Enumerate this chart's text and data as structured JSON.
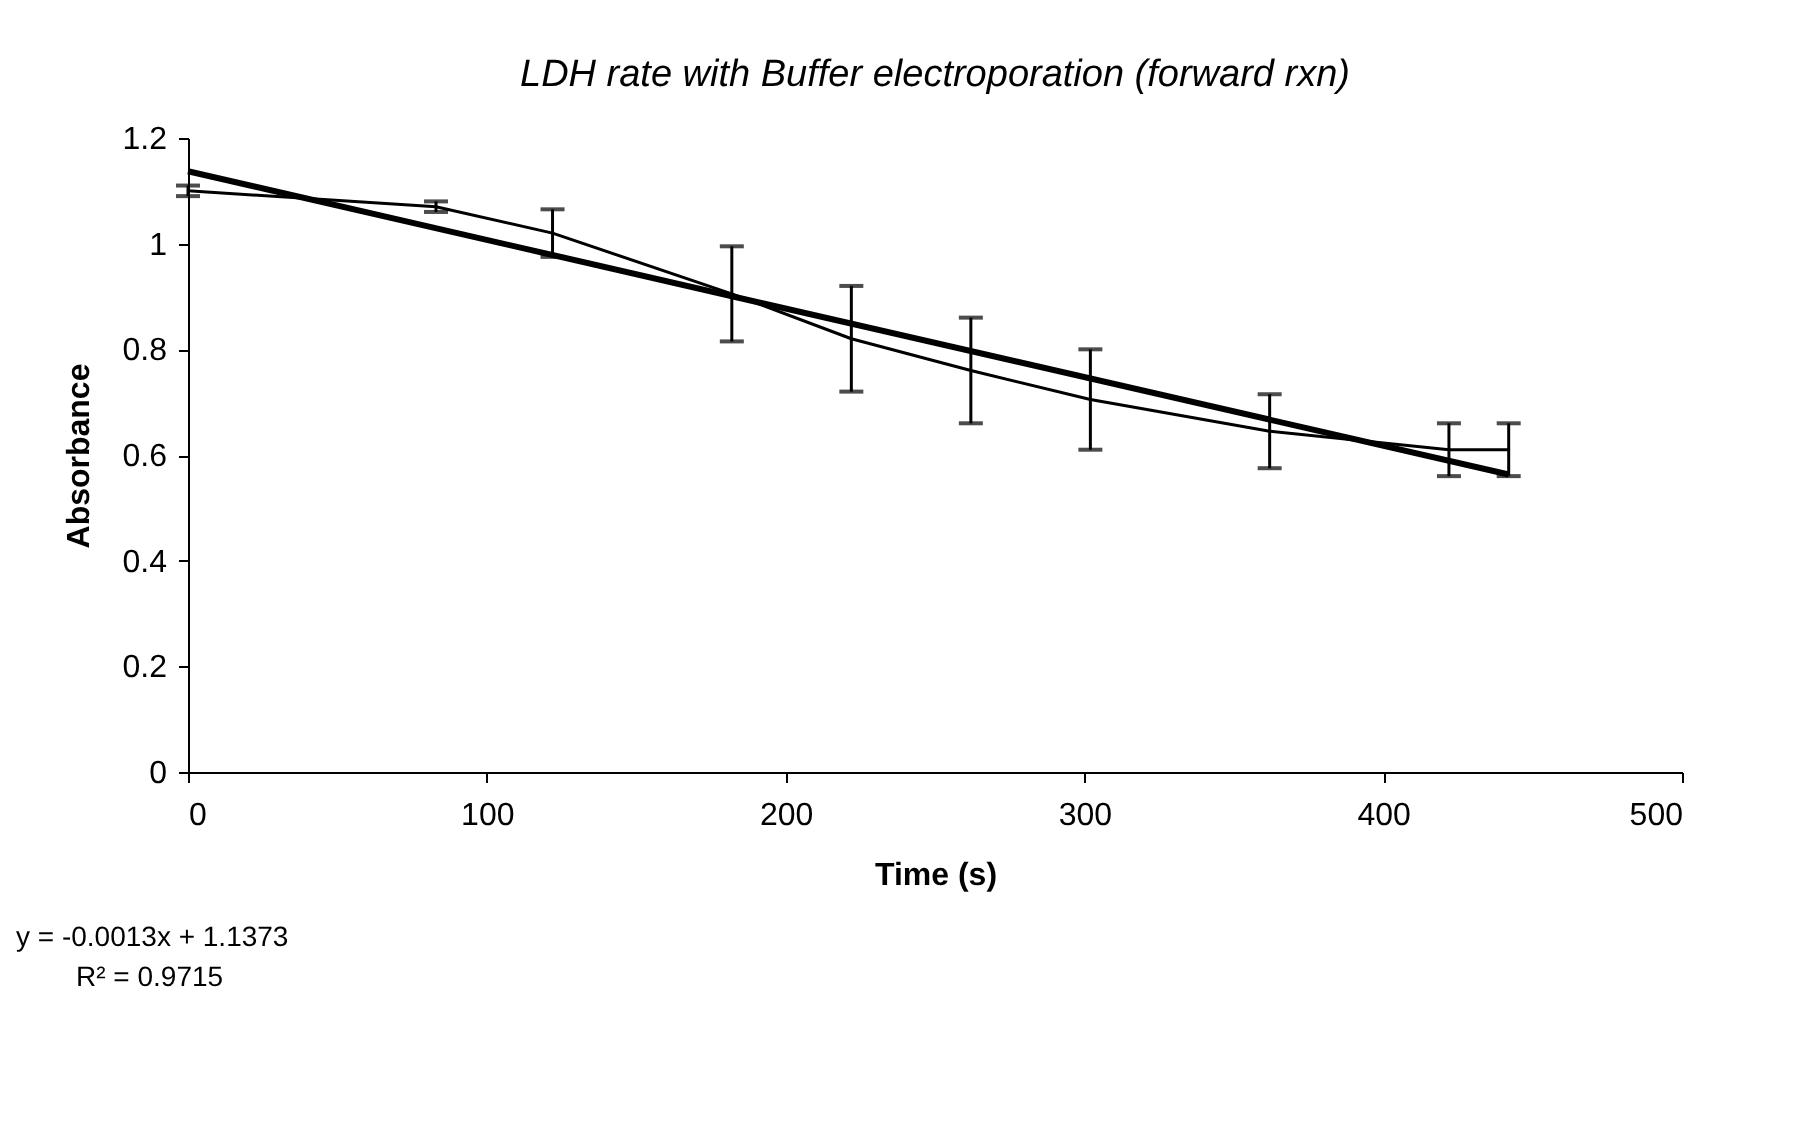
{
  "chart_data": {
    "type": "line",
    "title": "LDH rate with Buffer electroporation (forward rxn)",
    "xlabel": "Time (s)",
    "ylabel": "Absorbance",
    "xlim": [
      0,
      500
    ],
    "xticks": [
      0,
      100,
      200,
      300,
      400,
      500
    ],
    "ylim": [
      0,
      1.2
    ],
    "yticks": [
      0,
      0.2,
      0.4,
      0.6,
      0.8,
      1,
      1.2
    ],
    "grid": false,
    "marker": "none",
    "series": [
      {
        "color": "#000000",
        "x": [
          0,
          83,
          122,
          182,
          222,
          262,
          302,
          362,
          422,
          442
        ],
        "values": [
          1.1,
          1.07,
          1.02,
          0.905,
          0.82,
          0.76,
          0.705,
          0.645,
          0.61,
          0.61
        ],
        "errors": [
          0.01,
          0.01,
          0.045,
          0.09,
          0.1,
          0.1,
          0.095,
          0.07,
          0.05,
          0.05
        ]
      },
      {
        "type": "line",
        "color": "#000000",
        "x": [
          0,
          442
        ],
        "values": [
          1.137,
          0.563
        ]
      }
    ],
    "annotations": [
      "y = -0.0013x + 1.1373",
      "R² = 0.9715"
    ]
  }
}
